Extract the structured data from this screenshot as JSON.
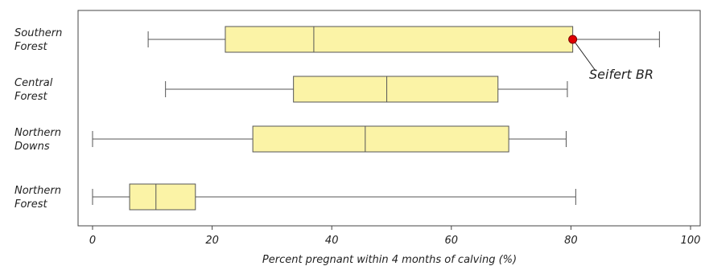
{
  "chart_data": {
    "type": "boxplot",
    "orientation": "horizontal",
    "xlabel": "Percent pregnant within 4 months of calving (%)",
    "xlim": [
      0,
      100
    ],
    "xticks": [
      0,
      20,
      40,
      60,
      80,
      100
    ],
    "categories": [
      [
        "Southern",
        "Forest"
      ],
      [
        "Central",
        "Forest"
      ],
      [
        "Northern",
        "Downs"
      ],
      [
        "Northern",
        "Forest"
      ]
    ],
    "boxes": [
      {
        "min": 9.3,
        "q1": 22.2,
        "median": 37.0,
        "q3": 80.3,
        "max": 94.8
      },
      {
        "min": 12.2,
        "q1": 33.6,
        "median": 49.2,
        "q3": 67.8,
        "max": 79.4
      },
      {
        "min": 0.0,
        "q1": 26.8,
        "median": 45.6,
        "q3": 69.6,
        "max": 79.2
      },
      {
        "min": 0.0,
        "q1": 6.2,
        "median": 10.6,
        "q3": 17.2,
        "max": 80.8
      }
    ],
    "highlight": {
      "label": "Seifert BR",
      "category_index": 0,
      "value": 80.3,
      "color": "#e00000"
    },
    "box_fill": "#fbf3a6",
    "box_stroke": "#555555",
    "grid": false
  }
}
